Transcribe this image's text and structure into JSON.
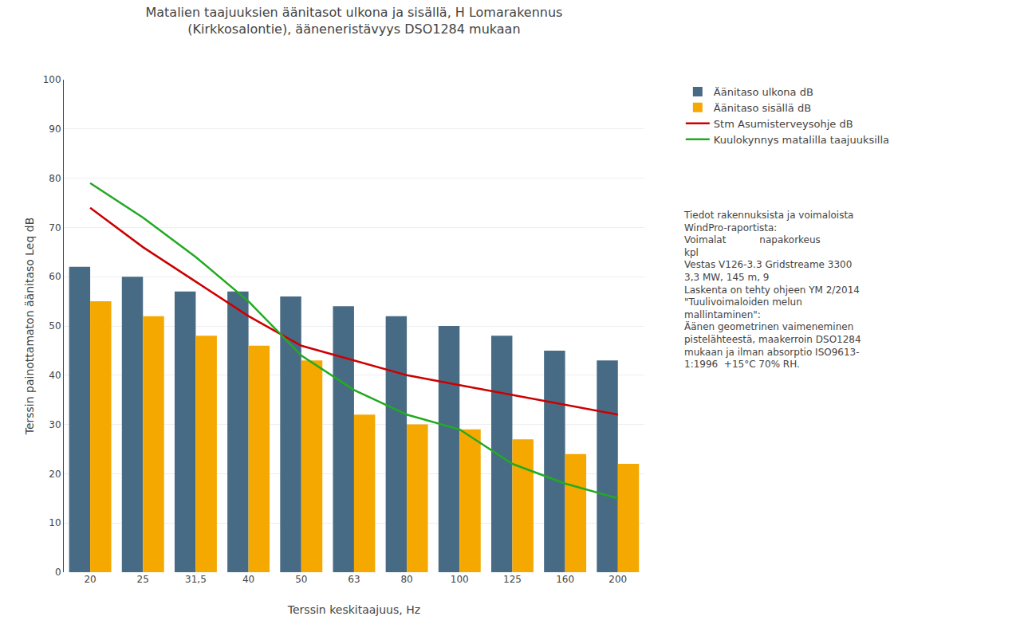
{
  "chart_data": {
    "type": "bar",
    "title": "Matalien taajuuksien äänitasot ulkona ja sisällä, H Lomarakennus\n(Kirkkosalontie), ääneneristävyys DSO1284 mukaan",
    "x_label": "Terssin keskitaajuus, Hz",
    "y_label": "Terssin painottamaton äänitaso Leq dB",
    "categories": [
      "20",
      "25",
      "31,5",
      "40",
      "50",
      "63",
      "80",
      "100",
      "125",
      "160",
      "200"
    ],
    "series": [
      {
        "name": "Äänitaso ulkona dB",
        "type": "bar",
        "color": "#486b85",
        "values": [
          62,
          60,
          57,
          57,
          56,
          54,
          52,
          50,
          48,
          45,
          43
        ]
      },
      {
        "name": "Äänitaso sisällä dB",
        "type": "bar",
        "color": "#f5a800",
        "values": [
          55,
          52,
          48,
          46,
          43,
          32,
          30,
          29,
          27,
          24,
          22
        ]
      },
      {
        "name": "Stm Asumisterveysohje dB",
        "type": "line",
        "color": "#cc0000",
        "values": [
          74,
          66,
          59,
          52,
          46,
          43,
          40,
          38,
          36,
          34,
          32
        ]
      },
      {
        "name": "Kuulokynnys matalilla taajuuksilla",
        "type": "line",
        "color": "#22aa22",
        "values": [
          79,
          72,
          64,
          55,
          44,
          37,
          32,
          29,
          22,
          18,
          15
        ]
      }
    ],
    "ylim": [
      0,
      100
    ],
    "yticks": [
      0,
      10,
      20,
      30,
      40,
      50,
      60,
      70,
      80,
      90,
      100
    ],
    "grid": true,
    "annotation": "Tiedot rakennuksista ja voimaloista\nWindPro-raportista:\nVoimalat           napakorkeus\nkpl\nVestas V126-3.3 Gridstreame 3300\n3,3 MW, 145 m, 9\nLaskenta on tehty ohjeen YM 2/2014\n\"Tuulivoimaloiden melun\nmallintaminen\":\nÄänen geometrinen vaimeneminen\npistelähteestä, maakerroin DSO1284\nmukaan ja ilman absorptio ISO9613-\n1:1996  +15°C 70% RH."
  }
}
